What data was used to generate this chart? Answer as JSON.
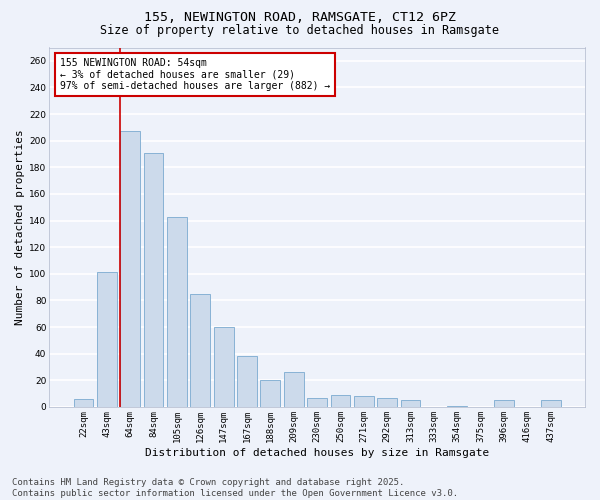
{
  "title_line1": "155, NEWINGTON ROAD, RAMSGATE, CT12 6PZ",
  "title_line2": "Size of property relative to detached houses in Ramsgate",
  "xlabel": "Distribution of detached houses by size in Ramsgate",
  "ylabel": "Number of detached properties",
  "bar_color": "#ccdaeb",
  "bar_edge_color": "#7aaad0",
  "background_color": "#eef2fa",
  "plot_bg_color": "#eef2fa",
  "grid_color": "#ffffff",
  "categories": [
    "22sqm",
    "43sqm",
    "64sqm",
    "84sqm",
    "105sqm",
    "126sqm",
    "147sqm",
    "167sqm",
    "188sqm",
    "209sqm",
    "230sqm",
    "250sqm",
    "271sqm",
    "292sqm",
    "313sqm",
    "333sqm",
    "354sqm",
    "375sqm",
    "396sqm",
    "416sqm",
    "437sqm"
  ],
  "values": [
    6,
    101,
    207,
    191,
    143,
    85,
    60,
    38,
    20,
    26,
    7,
    9,
    8,
    7,
    5,
    0,
    1,
    0,
    5,
    0,
    5
  ],
  "ylim": [
    0,
    270
  ],
  "yticks": [
    0,
    20,
    40,
    60,
    80,
    100,
    120,
    140,
    160,
    180,
    200,
    220,
    240,
    260
  ],
  "vline_x": 1.55,
  "vline_color": "#cc0000",
  "annotation_text": "155 NEWINGTON ROAD: 54sqm\n← 3% of detached houses are smaller (29)\n97% of semi-detached houses are larger (882) →",
  "annotation_box_color": "#cc0000",
  "footer_line1": "Contains HM Land Registry data © Crown copyright and database right 2025.",
  "footer_line2": "Contains public sector information licensed under the Open Government Licence v3.0.",
  "title_fontsize": 9.5,
  "subtitle_fontsize": 8.5,
  "axis_label_fontsize": 8,
  "tick_fontsize": 6.5,
  "annotation_fontsize": 7,
  "footer_fontsize": 6.5,
  "ylabel_fontsize": 8
}
